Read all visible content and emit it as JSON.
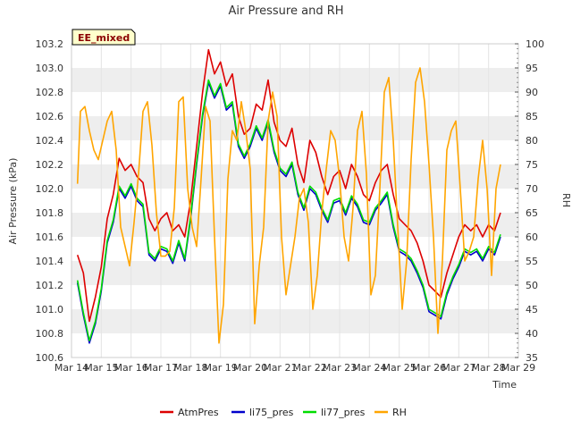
{
  "chart_data": {
    "type": "line",
    "title": "Air Pressure and RH",
    "badge": "EE_mixed",
    "xlabel": "Time",
    "ylabel_left": "Air Pressure (kPa)",
    "ylabel_right": "RH",
    "x_tick_labels": [
      "Mar 14",
      "Mar 15",
      "Mar 16",
      "Mar 17",
      "Mar 18",
      "Mar 19",
      "Mar 20",
      "Mar 21",
      "Mar 22",
      "Mar 23",
      "Mar 24",
      "Mar 25",
      "Mar 26",
      "Mar 27",
      "Mar 28",
      "Mar 29"
    ],
    "xlim": [
      14,
      29
    ],
    "ylim_left": [
      100.6,
      103.2
    ],
    "ylim_right": [
      35,
      100
    ],
    "left_ticks": [
      "100.6",
      "100.8",
      "101.0",
      "101.2",
      "101.4",
      "101.6",
      "101.8",
      "102.0",
      "102.2",
      "102.4",
      "102.6",
      "102.8",
      "103.0",
      "103.2"
    ],
    "right_ticks": [
      "35",
      "40",
      "45",
      "50",
      "55",
      "60",
      "65",
      "70",
      "75",
      "80",
      "85",
      "90",
      "95",
      "100"
    ],
    "grid": true,
    "legend_position": "bottom",
    "series": [
      {
        "name": "AtmPres",
        "axis": "left",
        "color": "#dd0000",
        "x": [
          14.2,
          14.4,
          14.6,
          14.8,
          15.0,
          15.2,
          15.4,
          15.6,
          15.8,
          16.0,
          16.2,
          16.4,
          16.6,
          16.8,
          17.0,
          17.2,
          17.4,
          17.6,
          17.8,
          18.0,
          18.2,
          18.4,
          18.6,
          18.8,
          19.0,
          19.2,
          19.4,
          19.6,
          19.8,
          20.0,
          20.2,
          20.4,
          20.6,
          20.8,
          21.0,
          21.2,
          21.4,
          21.6,
          21.8,
          22.0,
          22.2,
          22.4,
          22.6,
          22.8,
          23.0,
          23.2,
          23.4,
          23.6,
          23.8,
          24.0,
          24.2,
          24.4,
          24.6,
          24.8,
          25.0,
          25.2,
          25.4,
          25.6,
          25.8,
          26.0,
          26.2,
          26.4,
          26.6,
          26.8,
          27.0,
          27.2,
          27.4,
          27.6,
          27.8,
          28.0,
          28.2,
          28.4
        ],
        "y": [
          101.45,
          101.3,
          100.9,
          101.1,
          101.35,
          101.75,
          101.95,
          102.25,
          102.15,
          102.2,
          102.1,
          102.05,
          101.75,
          101.65,
          101.75,
          101.8,
          101.65,
          101.7,
          101.6,
          101.9,
          102.35,
          102.8,
          103.15,
          102.95,
          103.05,
          102.85,
          102.95,
          102.6,
          102.45,
          102.5,
          102.7,
          102.65,
          102.9,
          102.55,
          102.4,
          102.35,
          102.5,
          102.2,
          102.05,
          102.4,
          102.3,
          102.1,
          101.95,
          102.1,
          102.15,
          102.0,
          102.2,
          102.1,
          101.95,
          101.9,
          102.05,
          102.15,
          102.2,
          101.95,
          101.75,
          101.7,
          101.65,
          101.55,
          101.4,
          101.2,
          101.15,
          101.1,
          101.3,
          101.45,
          101.6,
          101.7,
          101.65,
          101.7,
          101.6,
          101.7,
          101.65,
          101.8
        ]
      },
      {
        "name": "li75_pres",
        "axis": "left",
        "color": "#0000cc",
        "x": [
          14.2,
          14.4,
          14.6,
          14.8,
          15.0,
          15.2,
          15.4,
          15.6,
          15.8,
          16.0,
          16.2,
          16.4,
          16.6,
          16.8,
          17.0,
          17.2,
          17.4,
          17.6,
          17.8,
          18.0,
          18.2,
          18.4,
          18.6,
          18.8,
          19.0,
          19.2,
          19.4,
          19.6,
          19.8,
          20.0,
          20.2,
          20.4,
          20.6,
          20.8,
          21.0,
          21.2,
          21.4,
          21.6,
          21.8,
          22.0,
          22.2,
          22.4,
          22.6,
          22.8,
          23.0,
          23.2,
          23.4,
          23.6,
          23.8,
          24.0,
          24.2,
          24.4,
          24.6,
          24.8,
          25.0,
          25.2,
          25.4,
          25.6,
          25.8,
          26.0,
          26.2,
          26.4,
          26.6,
          26.8,
          27.0,
          27.2,
          27.4,
          27.6,
          27.8,
          28.0,
          28.2,
          28.4
        ],
        "y": [
          101.22,
          100.95,
          100.72,
          100.88,
          101.15,
          101.55,
          101.72,
          102.0,
          101.92,
          102.02,
          101.9,
          101.85,
          101.45,
          101.4,
          101.5,
          101.48,
          101.38,
          101.55,
          101.4,
          101.75,
          102.2,
          102.6,
          102.88,
          102.75,
          102.85,
          102.65,
          102.7,
          102.35,
          102.25,
          102.35,
          102.5,
          102.4,
          102.55,
          102.3,
          102.15,
          102.1,
          102.2,
          101.95,
          101.82,
          102.0,
          101.95,
          101.82,
          101.72,
          101.88,
          101.9,
          101.78,
          101.92,
          101.85,
          101.72,
          101.7,
          101.82,
          101.88,
          101.95,
          101.68,
          101.48,
          101.45,
          101.4,
          101.3,
          101.18,
          100.98,
          100.95,
          100.92,
          101.12,
          101.25,
          101.35,
          101.48,
          101.45,
          101.48,
          101.4,
          101.5,
          101.45,
          101.6
        ]
      },
      {
        "name": "li77_pres",
        "axis": "left",
        "color": "#00dd00",
        "x": [
          14.2,
          14.4,
          14.6,
          14.8,
          15.0,
          15.2,
          15.4,
          15.6,
          15.8,
          16.0,
          16.2,
          16.4,
          16.6,
          16.8,
          17.0,
          17.2,
          17.4,
          17.6,
          17.8,
          18.0,
          18.2,
          18.4,
          18.6,
          18.8,
          19.0,
          19.2,
          19.4,
          19.6,
          19.8,
          20.0,
          20.2,
          20.4,
          20.6,
          20.8,
          21.0,
          21.2,
          21.4,
          21.6,
          21.8,
          22.0,
          22.2,
          22.4,
          22.6,
          22.8,
          23.0,
          23.2,
          23.4,
          23.6,
          23.8,
          24.0,
          24.2,
          24.4,
          24.6,
          24.8,
          25.0,
          25.2,
          25.4,
          25.6,
          25.8,
          26.0,
          26.2,
          26.4,
          26.6,
          26.8,
          27.0,
          27.2,
          27.4,
          27.6,
          27.8,
          28.0,
          28.2,
          28.4
        ],
        "y": [
          101.24,
          100.97,
          100.74,
          100.9,
          101.17,
          101.57,
          101.74,
          102.02,
          101.94,
          102.04,
          101.92,
          101.87,
          101.47,
          101.42,
          101.52,
          101.5,
          101.4,
          101.57,
          101.42,
          101.77,
          102.22,
          102.62,
          102.9,
          102.77,
          102.87,
          102.67,
          102.72,
          102.37,
          102.27,
          102.37,
          102.52,
          102.42,
          102.57,
          102.32,
          102.17,
          102.12,
          102.22,
          101.97,
          101.84,
          102.02,
          101.97,
          101.84,
          101.74,
          101.9,
          101.92,
          101.8,
          101.94,
          101.87,
          101.74,
          101.72,
          101.84,
          101.9,
          101.97,
          101.7,
          101.5,
          101.47,
          101.42,
          101.32,
          101.2,
          101.0,
          100.97,
          100.94,
          101.14,
          101.27,
          101.37,
          101.5,
          101.47,
          101.5,
          101.42,
          101.52,
          101.47,
          101.62
        ]
      },
      {
        "name": "RH",
        "axis": "right",
        "color": "#ffa500",
        "x": [
          14.2,
          14.3,
          14.45,
          14.6,
          14.75,
          14.9,
          15.05,
          15.2,
          15.35,
          15.5,
          15.65,
          15.8,
          15.95,
          16.1,
          16.25,
          16.4,
          16.55,
          16.7,
          16.85,
          17.0,
          17.15,
          17.3,
          17.45,
          17.6,
          17.75,
          17.9,
          18.05,
          18.2,
          18.35,
          18.5,
          18.65,
          18.8,
          18.95,
          19.1,
          19.25,
          19.4,
          19.55,
          19.7,
          19.85,
          20.0,
          20.15,
          20.3,
          20.45,
          20.6,
          20.75,
          20.9,
          21.05,
          21.2,
          21.35,
          21.5,
          21.65,
          21.8,
          21.95,
          22.1,
          22.25,
          22.4,
          22.55,
          22.7,
          22.85,
          23.0,
          23.15,
          23.3,
          23.45,
          23.6,
          23.75,
          23.9,
          24.05,
          24.2,
          24.35,
          24.5,
          24.65,
          24.8,
          24.95,
          25.1,
          25.25,
          25.4,
          25.55,
          25.7,
          25.85,
          26.0,
          26.15,
          26.3,
          26.45,
          26.6,
          26.75,
          26.9,
          27.05,
          27.2,
          27.35,
          27.5,
          27.65,
          27.8,
          27.95,
          28.1,
          28.25,
          28.4
        ],
        "y": [
          71,
          86,
          87,
          82,
          78,
          76,
          80,
          84,
          86,
          78,
          62,
          58,
          54,
          63,
          73,
          86,
          88,
          79,
          65,
          56,
          56,
          57,
          66,
          88,
          89,
          70,
          62,
          58,
          72,
          87,
          84,
          60,
          38,
          46,
          72,
          82,
          80,
          88,
          82,
          74,
          42,
          54,
          62,
          84,
          90,
          85,
          60,
          48,
          54,
          60,
          68,
          70,
          63,
          45,
          52,
          65,
          74,
          82,
          80,
          72,
          60,
          55,
          66,
          82,
          86,
          73,
          48,
          52,
          70,
          90,
          93,
          80,
          62,
          45,
          55,
          76,
          92,
          95,
          88,
          75,
          60,
          40,
          55,
          78,
          82,
          84,
          70,
          55,
          57,
          60,
          72,
          80,
          70,
          52,
          70,
          75
        ]
      }
    ]
  }
}
